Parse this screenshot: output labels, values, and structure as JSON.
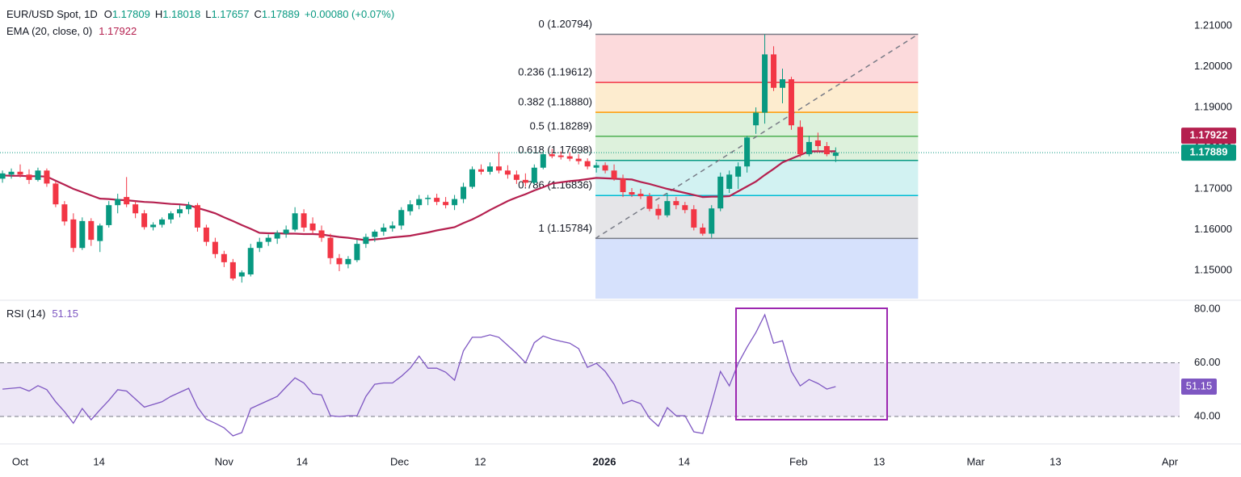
{
  "chart_data": [
    {
      "type": "candlestick",
      "title": "EUR/USD Spot, 1D",
      "ohlc_labels": [
        "O",
        "H",
        "L",
        "C"
      ],
      "change": "+0.00080 (+0.07%)",
      "up_color": "#089981",
      "down_color": "#f23645",
      "candles": {
        "x": [
          -2,
          -1,
          0,
          1,
          2,
          3,
          4,
          5,
          6,
          7,
          8,
          9,
          10,
          11,
          12,
          13,
          14,
          15,
          16,
          17,
          18,
          19,
          20,
          21,
          22,
          23,
          24,
          25,
          26,
          27,
          28,
          29,
          30,
          31,
          32,
          33,
          34,
          35,
          36,
          37,
          38,
          39,
          40,
          41,
          42,
          43,
          44,
          45,
          46,
          47,
          48,
          49,
          50,
          51,
          52,
          53,
          54,
          55,
          56,
          57,
          58,
          59,
          60,
          61,
          62,
          63,
          64,
          65,
          66,
          67,
          68,
          69,
          70,
          71,
          72,
          73,
          74,
          75,
          76,
          77,
          78,
          79,
          80,
          81,
          82,
          83,
          84,
          85,
          86,
          87,
          88,
          89,
          90,
          91,
          92
        ],
        "open": [
          1.1725,
          1.1735,
          1.1742,
          1.1735,
          1.1722,
          1.1745,
          1.1713,
          1.1662,
          1.1625,
          1.1555,
          1.1621,
          1.1572,
          1.1611,
          1.166,
          1.168,
          1.1662,
          1.164,
          1.1606,
          1.1612,
          1.1625,
          1.164,
          1.165,
          1.166,
          1.1605,
          1.157,
          1.154,
          1.152,
          1.1485,
          1.149,
          1.1555,
          1.157,
          1.1578,
          1.159,
          1.16,
          1.164,
          1.1615,
          1.1598,
          1.158,
          1.153,
          1.1515,
          1.1525,
          1.1565,
          1.1582,
          1.1595,
          1.1603,
          1.161,
          1.1645,
          1.166,
          1.1675,
          1.1678,
          1.1668,
          1.166,
          1.1675,
          1.1705,
          1.1748,
          1.1742,
          1.1755,
          1.1745,
          1.1735,
          1.1722,
          1.1715,
          1.1752,
          1.1785,
          1.1782,
          1.178,
          1.1774,
          1.1768,
          1.1752,
          1.1758,
          1.1745,
          1.1725,
          1.1692,
          1.1688,
          1.1682,
          1.1651,
          1.1635,
          1.167,
          1.166,
          1.165,
          1.1605,
          1.159,
          1.1652,
          1.17,
          1.173,
          1.1755,
          1.1856,
          1.1887,
          1.203,
          1.1948,
          1.1969,
          1.1852,
          1.1785,
          1.1819,
          1.1805,
          1.17809
        ],
        "high": [
          1.1745,
          1.175,
          1.176,
          1.1748,
          1.1752,
          1.175,
          1.1718,
          1.167,
          1.164,
          1.163,
          1.1628,
          1.1615,
          1.167,
          1.1688,
          1.1729,
          1.167,
          1.1648,
          1.1618,
          1.163,
          1.1645,
          1.166,
          1.1668,
          1.1665,
          1.1612,
          1.158,
          1.1548,
          1.1528,
          1.15,
          1.1565,
          1.158,
          1.1588,
          1.1598,
          1.161,
          1.1655,
          1.165,
          1.163,
          1.161,
          1.159,
          1.154,
          1.1535,
          1.1575,
          1.159,
          1.16,
          1.1615,
          1.162,
          1.1655,
          1.1672,
          1.1685,
          1.1685,
          1.1688,
          1.168,
          1.1685,
          1.1715,
          1.1755,
          1.176,
          1.1765,
          1.179,
          1.1758,
          1.1745,
          1.1738,
          1.176,
          1.1792,
          1.1798,
          1.1792,
          1.179,
          1.1785,
          1.1775,
          1.1765,
          1.1765,
          1.176,
          1.1735,
          1.1702,
          1.17,
          1.169,
          1.1662,
          1.169,
          1.168,
          1.1668,
          1.166,
          1.1615,
          1.166,
          1.174,
          1.1745,
          1.1765,
          1.183,
          1.19,
          1.2079,
          1.205,
          1.1995,
          1.1975,
          1.1868,
          1.183,
          1.1838,
          1.1815,
          1.18018
        ],
        "low": [
          1.1715,
          1.1725,
          1.1728,
          1.1712,
          1.1718,
          1.1705,
          1.1655,
          1.161,
          1.1545,
          1.155,
          1.156,
          1.1545,
          1.1605,
          1.164,
          1.1655,
          1.1628,
          1.16,
          1.1598,
          1.1605,
          1.1615,
          1.163,
          1.1638,
          1.1595,
          1.156,
          1.153,
          1.1508,
          1.1475,
          1.147,
          1.1485,
          1.1545,
          1.156,
          1.1565,
          1.158,
          1.1595,
          1.1595,
          1.159,
          1.157,
          1.1515,
          1.1498,
          1.1505,
          1.152,
          1.1555,
          1.157,
          1.1585,
          1.1595,
          1.16,
          1.1635,
          1.165,
          1.166,
          1.166,
          1.1652,
          1.1648,
          1.1665,
          1.17,
          1.1735,
          1.1735,
          1.1738,
          1.1725,
          1.1712,
          1.1705,
          1.171,
          1.1748,
          1.1775,
          1.1772,
          1.1768,
          1.176,
          1.1748,
          1.174,
          1.1738,
          1.172,
          1.168,
          1.168,
          1.1675,
          1.1645,
          1.1625,
          1.163,
          1.165,
          1.164,
          1.1598,
          1.1585,
          1.158,
          1.1645,
          1.169,
          1.17,
          1.174,
          1.1835,
          1.186,
          1.194,
          1.191,
          1.1845,
          1.1778,
          1.178,
          1.179,
          1.178,
          1.17657
        ],
        "close": [
          1.1738,
          1.1742,
          1.1735,
          1.1722,
          1.1745,
          1.1713,
          1.1662,
          1.162,
          1.1555,
          1.1621,
          1.1575,
          1.161,
          1.166,
          1.1675,
          1.1662,
          1.164,
          1.1606,
          1.1612,
          1.1625,
          1.164,
          1.165,
          1.166,
          1.1605,
          1.157,
          1.154,
          1.152,
          1.148,
          1.1495,
          1.1555,
          1.157,
          1.158,
          1.1592,
          1.16,
          1.164,
          1.1605,
          1.1598,
          1.158,
          1.153,
          1.1515,
          1.1528,
          1.1565,
          1.1582,
          1.1595,
          1.1605,
          1.161,
          1.1648,
          1.1662,
          1.1675,
          1.1678,
          1.1668,
          1.166,
          1.1675,
          1.1705,
          1.1748,
          1.1742,
          1.1755,
          1.1745,
          1.1735,
          1.1722,
          1.1715,
          1.1752,
          1.1785,
          1.178,
          1.1778,
          1.1774,
          1.1768,
          1.1755,
          1.1758,
          1.1745,
          1.1725,
          1.1692,
          1.1686,
          1.1682,
          1.1651,
          1.1635,
          1.167,
          1.166,
          1.1648,
          1.1605,
          1.159,
          1.1652,
          1.173,
          1.1735,
          1.1755,
          1.1826,
          1.1887,
          1.203,
          1.1948,
          1.1969,
          1.1856,
          1.1785,
          1.1815,
          1.1805,
          1.1785,
          1.17889
        ]
      },
      "series": [
        {
          "name": "EMA (20, close, 0)",
          "color": "#b5204f",
          "values": [
            1.1733,
            1.1732,
            1.1732,
            1.1731,
            1.1731,
            1.173,
            1.172,
            1.171,
            1.17,
            1.1692,
            1.1684,
            1.1676,
            1.1675,
            1.1673,
            1.1672,
            1.167,
            1.1668,
            1.1667,
            1.1665,
            1.1663,
            1.1662,
            1.166,
            1.1653,
            1.1647,
            1.164,
            1.163,
            1.1621,
            1.1611,
            1.1602,
            1.1592,
            1.1591,
            1.1591,
            1.159,
            1.159,
            1.1589,
            1.1589,
            1.1588,
            1.1585,
            1.1582,
            1.158,
            1.1577,
            1.1574,
            1.1576,
            1.1578,
            1.1581,
            1.1583,
            1.1585,
            1.1589,
            1.1593,
            1.1598,
            1.1602,
            1.1606,
            1.1616,
            1.1625,
            1.1636,
            1.1648,
            1.1659,
            1.167,
            1.1679,
            1.1687,
            1.1696,
            1.1704,
            1.1713,
            1.1716,
            1.1719,
            1.1721,
            1.1724,
            1.1727,
            1.1726,
            1.1725,
            1.1724,
            1.1723,
            1.1717,
            1.1712,
            1.1706,
            1.17,
            1.1695,
            1.169,
            1.1685,
            1.168,
            1.1681,
            1.1681,
            1.1682,
            1.1694,
            1.1706,
            1.1718,
            1.1734,
            1.1749,
            1.1765,
            1.1774,
            1.1783,
            1.1792,
            1.1792,
            1.1792,
            1.17922
          ]
        }
      ],
      "fibonacci": [
        {
          "label": "0 (1.20794)",
          "value": 1.20794,
          "color": "#787b86",
          "fill": "#fcdadc"
        },
        {
          "label": "0.236 (1.19612)",
          "value": 1.19612,
          "color": "#f23645",
          "fill": "#fdeccf"
        },
        {
          "label": "0.382 (1.18880)",
          "value": 1.1888,
          "color": "#ff9800",
          "fill": "#ddf1dc"
        },
        {
          "label": "0.5 (1.18289)",
          "value": 1.18289,
          "color": "#4caf50",
          "fill": "#ddf1dc"
        },
        {
          "label": "0.618 (1.17698)",
          "value": 1.17698,
          "color": "#089981",
          "fill": "#d2f2f2"
        },
        {
          "label": "0.786 (1.16836)",
          "value": 1.16836,
          "color": "#00bcd4",
          "fill": "#e5e5e8"
        },
        {
          "label": "1 (1.15784)",
          "value": 1.15784,
          "color": "#787b86",
          "fill": "#d6e1fc"
        }
      ],
      "xlim": [
        -2.28,
        130.8
      ],
      "ylim": [
        1.14306,
        1.21635
      ],
      "yticks": [
        {
          "value": 1.21,
          "label": "1.21000"
        },
        {
          "value": 1.2,
          "label": "1.20000"
        },
        {
          "value": 1.19,
          "label": "1.19000"
        },
        {
          "value": 1.18,
          "label": "1.18000"
        },
        {
          "value": 1.17,
          "label": "1.17000"
        },
        {
          "value": 1.16,
          "label": "1.16000"
        },
        {
          "value": 1.15,
          "label": "1.15000"
        }
      ]
    },
    {
      "type": "line",
      "series": [
        {
          "name": "RSI (14)",
          "color": "#7e57c2",
          "values": [
            50.2,
            50.5,
            50.8,
            49.5,
            51.5,
            50.0,
            45.5,
            41.8,
            37.5,
            43.0,
            38.8,
            42.5,
            46.0,
            50.0,
            49.5,
            46.5,
            43.5,
            44.5,
            45.5,
            47.5,
            49.0,
            50.5,
            43.5,
            39.0,
            37.5,
            35.8,
            32.8,
            34.0,
            43.0,
            44.5,
            46.0,
            47.5,
            51.0,
            54.4,
            52.5,
            48.5,
            48.0,
            40.3,
            40.0,
            40.3,
            40.3,
            47.5,
            52.0,
            52.5,
            52.5,
            55.0,
            58.0,
            62.5,
            58.0,
            58.0,
            56.5,
            53.5,
            64.5,
            69.5,
            69.5,
            70.4,
            69.5,
            66.5,
            63.5,
            60.0,
            67.5,
            70.0,
            68.8,
            68.0,
            67.3,
            65.3,
            58.3,
            59.8,
            56.8,
            52.0,
            44.8,
            46.0,
            44.8,
            39.4,
            36.4,
            43.3,
            40.3,
            40.3,
            34.3,
            33.7,
            44.8,
            56.8,
            51.4,
            59.8,
            65.8,
            71.3,
            77.9,
            67.3,
            68.2,
            56.8,
            51.4,
            53.8,
            52.3,
            50.2,
            51.15
          ]
        }
      ],
      "band": [
        40,
        60
      ],
      "band_color": "#ede7f6",
      "xlim": [
        -2.28,
        130.8
      ],
      "ylim": [
        30.4,
        82.4
      ],
      "yticks": [
        {
          "value": 80,
          "label": "80.00"
        },
        {
          "value": 60,
          "label": "60.00"
        },
        {
          "value": 40,
          "label": "40.00"
        }
      ],
      "xticks": [
        {
          "value": 0,
          "label": "Oct"
        },
        {
          "value": 8.9,
          "label": "14"
        },
        {
          "value": 23,
          "label": "Nov"
        },
        {
          "value": 31.8,
          "label": "14"
        },
        {
          "value": 42.8,
          "label": "Dec"
        },
        {
          "value": 51.9,
          "label": "12"
        },
        {
          "value": 65.9,
          "label": "2026",
          "bold": true
        },
        {
          "value": 74.9,
          "label": "14"
        },
        {
          "value": 87.8,
          "label": "Feb"
        },
        {
          "value": 96.9,
          "label": "13"
        },
        {
          "value": 107.8,
          "label": "Mar"
        },
        {
          "value": 116.8,
          "label": "13"
        },
        {
          "value": 129.7,
          "label": "Apr"
        }
      ]
    }
  ]
}
